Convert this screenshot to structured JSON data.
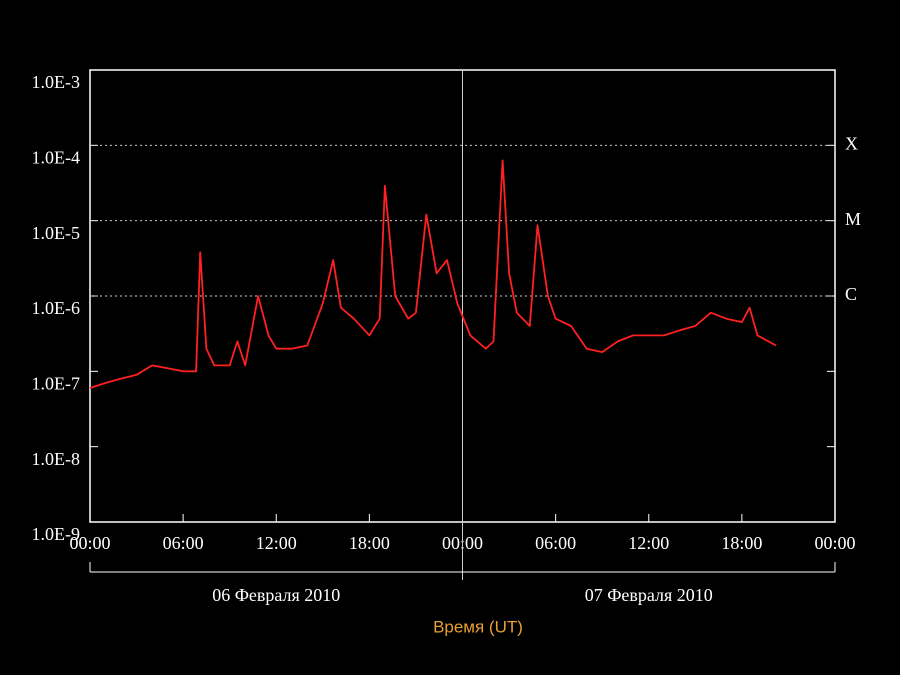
{
  "chart_data": {
    "type": "line",
    "x_label": "Время (UT)",
    "date_labels": [
      "06 Февраля 2010",
      "07 Февраля 2010"
    ],
    "log_y": true,
    "ylim": [
      1e-09,
      0.001
    ],
    "yticks": [
      {
        "value": 0.001,
        "label": "1.0E-3"
      },
      {
        "value": 0.0001,
        "label": "1.0E-4"
      },
      {
        "value": 1e-05,
        "label": "1.0E-5"
      },
      {
        "value": 1e-06,
        "label": "1.0E-6"
      },
      {
        "value": 1e-07,
        "label": "1.0E-7"
      },
      {
        "value": 1e-08,
        "label": "1.0E-8"
      },
      {
        "value": 1e-09,
        "label": "1.0E-9"
      }
    ],
    "class_labels": [
      {
        "value": 0.0001,
        "label": "X"
      },
      {
        "value": 1e-05,
        "label": "M"
      },
      {
        "value": 1e-06,
        "label": "C"
      }
    ],
    "xlim": [
      "2010-02-06T00:00",
      "2010-02-08T00:00"
    ],
    "xticks": [
      {
        "value": "2010-02-06T00:00",
        "label": "00:00"
      },
      {
        "value": "2010-02-06T06:00",
        "label": "06:00"
      },
      {
        "value": "2010-02-06T12:00",
        "label": "12:00"
      },
      {
        "value": "2010-02-06T18:00",
        "label": "18:00"
      },
      {
        "value": "2010-02-07T00:00",
        "label": "00:00"
      },
      {
        "value": "2010-02-07T06:00",
        "label": "06:00"
      },
      {
        "value": "2010-02-07T12:00",
        "label": "12:00"
      },
      {
        "value": "2010-02-07T18:00",
        "label": "18:00"
      },
      {
        "value": "2010-02-08T00:00",
        "label": "00:00"
      }
    ],
    "series": [
      {
        "color": "#ff2020",
        "x": [
          "2010-02-06T00:00",
          "2010-02-06T01:00",
          "2010-02-06T02:00",
          "2010-02-06T03:00",
          "2010-02-06T04:00",
          "2010-02-06T05:00",
          "2010-02-06T06:00",
          "2010-02-06T06:50",
          "2010-02-06T07:06",
          "2010-02-06T07:30",
          "2010-02-06T08:00",
          "2010-02-06T09:00",
          "2010-02-06T09:30",
          "2010-02-06T10:00",
          "2010-02-06T10:50",
          "2010-02-06T11:30",
          "2010-02-06T12:00",
          "2010-02-06T13:00",
          "2010-02-06T14:00",
          "2010-02-06T15:00",
          "2010-02-06T15:40",
          "2010-02-06T16:10",
          "2010-02-06T17:00",
          "2010-02-06T18:00",
          "2010-02-06T18:40",
          "2010-02-06T19:00",
          "2010-02-06T19:40",
          "2010-02-06T20:30",
          "2010-02-06T21:00",
          "2010-02-06T21:40",
          "2010-02-06T22:20",
          "2010-02-06T23:00",
          "2010-02-06T23:40",
          "2010-02-07T00:30",
          "2010-02-07T01:30",
          "2010-02-07T02:00",
          "2010-02-07T02:35",
          "2010-02-07T03:00",
          "2010-02-07T03:30",
          "2010-02-07T04:20",
          "2010-02-07T04:50",
          "2010-02-07T05:30",
          "2010-02-07T06:00",
          "2010-02-07T07:00",
          "2010-02-07T08:00",
          "2010-02-07T09:00",
          "2010-02-07T10:00",
          "2010-02-07T11:00",
          "2010-02-07T12:00",
          "2010-02-07T13:00",
          "2010-02-07T14:00",
          "2010-02-07T15:00",
          "2010-02-07T16:00",
          "2010-02-07T17:00",
          "2010-02-07T18:00",
          "2010-02-07T18:30",
          "2010-02-07T19:00",
          "2010-02-07T20:12"
        ],
        "values": [
          6e-08,
          7e-08,
          8e-08,
          9e-08,
          1.2e-07,
          1.1e-07,
          1e-07,
          1e-07,
          3.8e-06,
          2e-07,
          1.2e-07,
          1.2e-07,
          2.5e-07,
          1.2e-07,
          1e-06,
          3e-07,
          2e-07,
          2e-07,
          2.2e-07,
          8e-07,
          3e-06,
          7e-07,
          5e-07,
          3e-07,
          5e-07,
          2.9e-05,
          1e-06,
          5e-07,
          6e-07,
          1.2e-05,
          2e-06,
          3e-06,
          8e-07,
          3e-07,
          2e-07,
          2.5e-07,
          6.3e-05,
          2e-06,
          6e-07,
          4e-07,
          8.7e-06,
          1e-06,
          5e-07,
          4e-07,
          2e-07,
          1.8e-07,
          2.5e-07,
          3e-07,
          3e-07,
          3e-07,
          3.5e-07,
          4e-07,
          6e-07,
          5e-07,
          4.5e-07,
          7e-07,
          3e-07,
          2.2e-07
        ]
      }
    ]
  }
}
